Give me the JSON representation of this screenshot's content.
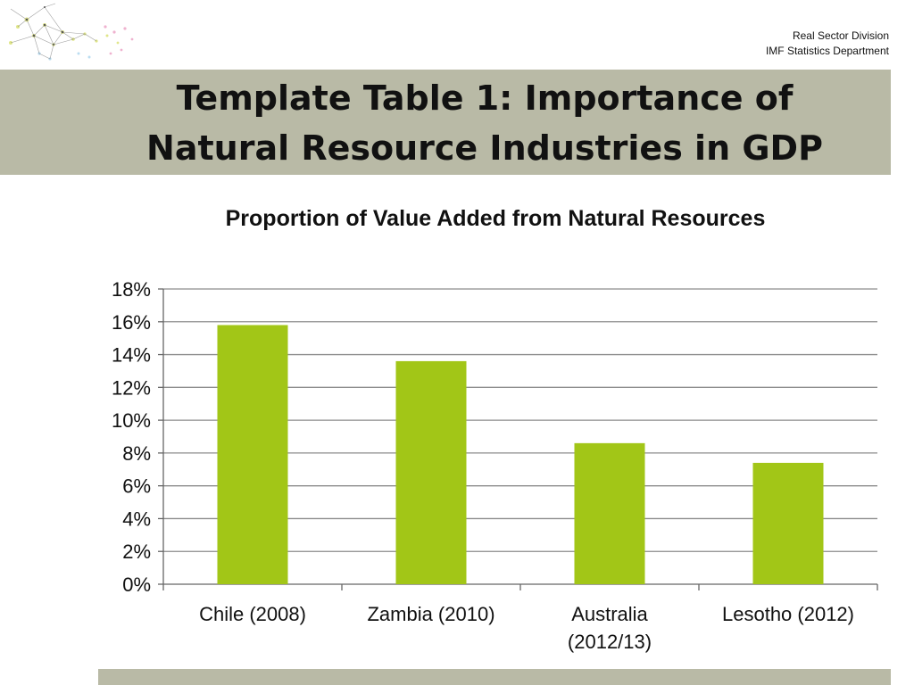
{
  "header": {
    "division": "Real Sector Division",
    "department": "IMF Statistics Department",
    "logo_icon": "network-graph-logo-icon"
  },
  "slide": {
    "title_line1": "Template Table 1: Importance of",
    "title_line2": "Natural Resource Industries in GDP"
  },
  "colors": {
    "band": "#b9baa6",
    "bar": "#a2c617",
    "grid": "#8c8c8c"
  },
  "chart_data": {
    "type": "bar",
    "title": "Proportion of Value Added from Natural Resources",
    "categories": [
      "Chile (2008)",
      "Zambia (2010)",
      "Australia (2012/13)",
      "Lesotho (2012)"
    ],
    "values": [
      15.8,
      13.6,
      8.6,
      7.4
    ],
    "unit": "%",
    "ylim": [
      0,
      18
    ],
    "yticks": [
      "0%",
      "2%",
      "4%",
      "6%",
      "8%",
      "10%",
      "12%",
      "14%",
      "16%",
      "18%"
    ],
    "grid": true,
    "legend": "none",
    "xlabel": "",
    "ylabel": ""
  }
}
